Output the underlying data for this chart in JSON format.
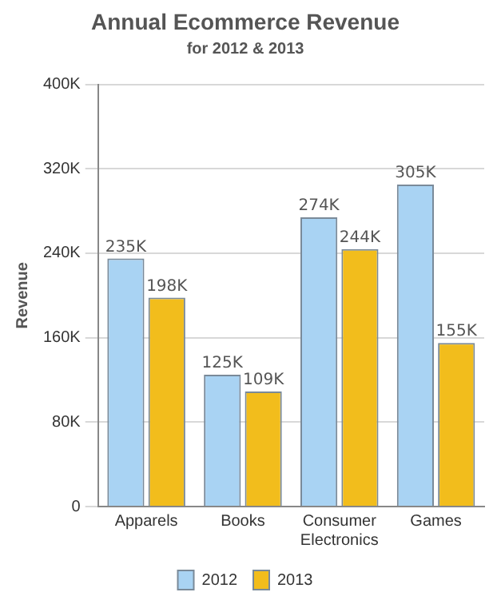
{
  "chart_data": {
    "type": "bar",
    "title": "Annual Ecommerce Revenue",
    "subtitle": "for 2012 & 2013",
    "ylabel": "Revenue",
    "categories": [
      "Apparels",
      "Books",
      "Consumer Electronics",
      "Games"
    ],
    "series": [
      {
        "name": "2012",
        "color": "#a9d3f3",
        "values": [
          235000,
          125000,
          274000,
          305000
        ],
        "value_labels": [
          "235K",
          "125K",
          "274K",
          "305K"
        ]
      },
      {
        "name": "2013",
        "color": "#f2bd1c",
        "values": [
          198000,
          109000,
          244000,
          155000
        ],
        "value_labels": [
          "198K",
          "109K",
          "244K",
          "155K"
        ]
      }
    ],
    "ylim": [
      0,
      400000
    ],
    "yticks": [
      {
        "value": 0,
        "label": "0"
      },
      {
        "value": 80000,
        "label": "80K"
      },
      {
        "value": 160000,
        "label": "160K"
      },
      {
        "value": 240000,
        "label": "240K"
      },
      {
        "value": 320000,
        "label": "320K"
      },
      {
        "value": 400000,
        "label": "400K"
      }
    ],
    "grid": "y",
    "legend": "bottom"
  }
}
